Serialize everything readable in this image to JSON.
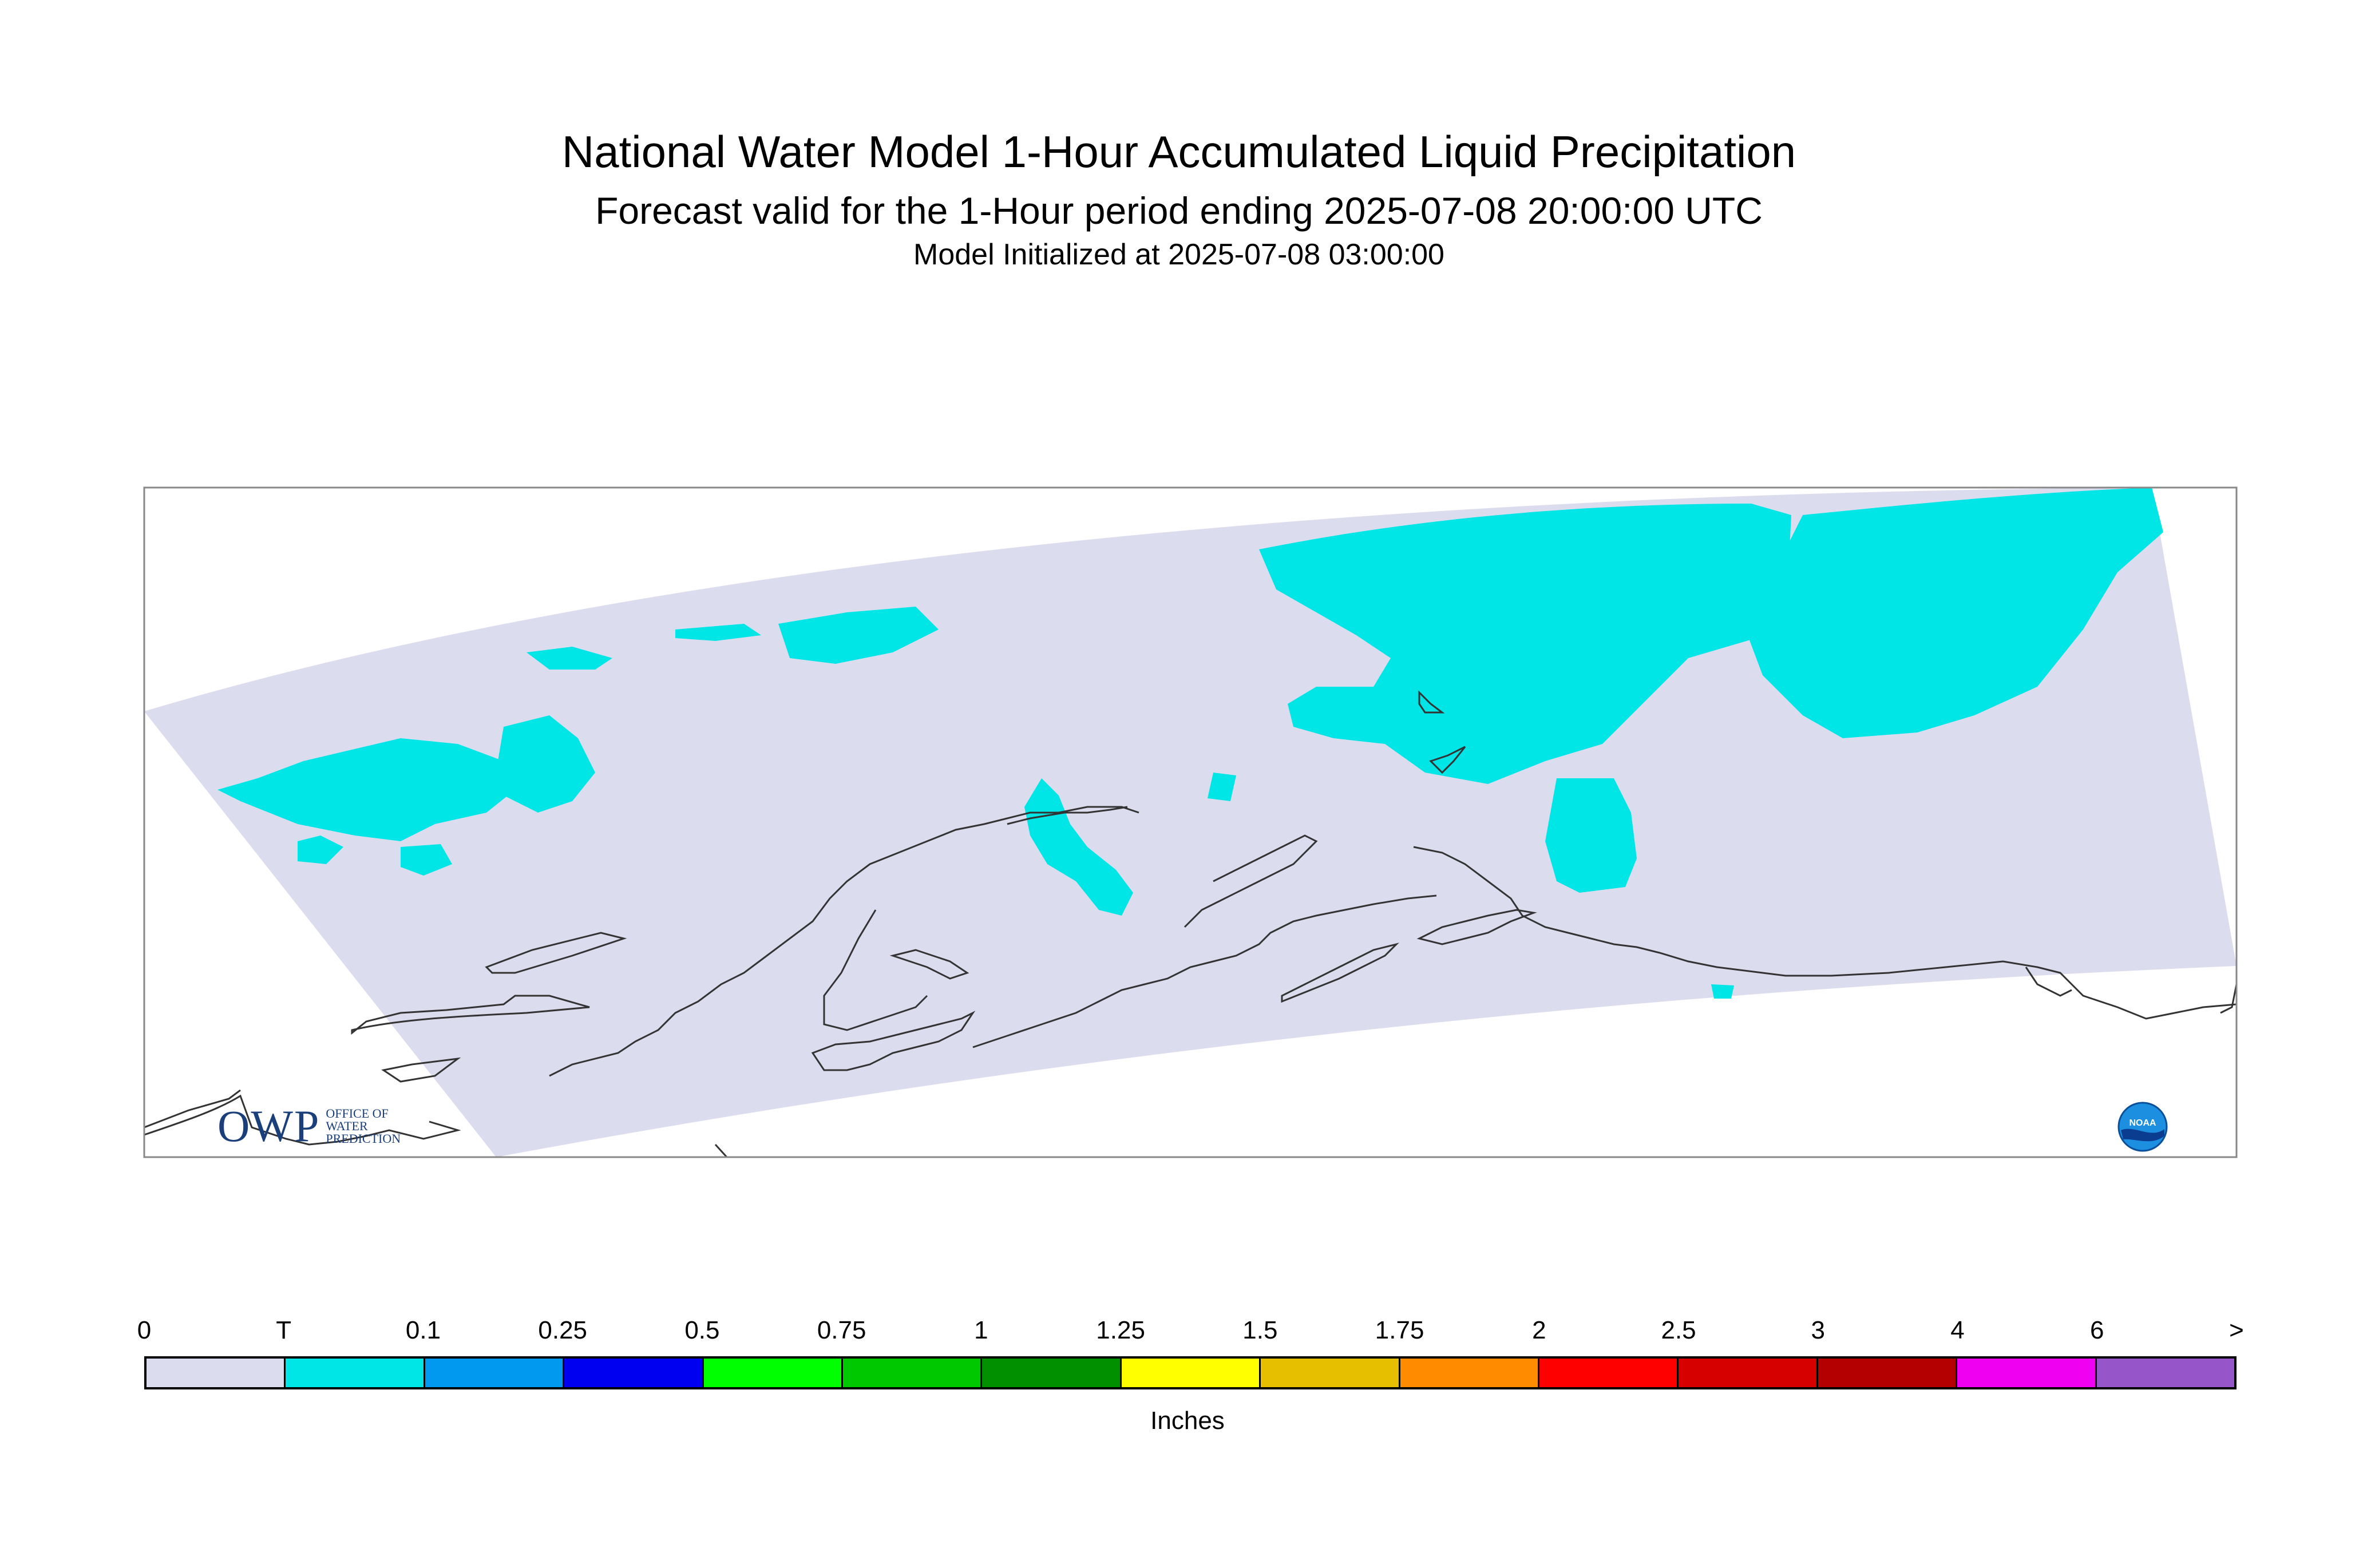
{
  "title": {
    "line1": "National Water Model 1-Hour Accumulated Liquid Precipitation",
    "line2": "Forecast valid for the 1-Hour period ending 2025-07-08 20:00:00 UTC",
    "line3": "Model Initialized at 2025-07-08 03:00:00"
  },
  "map": {
    "domain_fill_color": "#dcdcef",
    "precip_color": "#00e5e5",
    "coastline_color": "#333333"
  },
  "logos": {
    "owp_mark": "OWP",
    "owp_text": [
      "OFFICE OF",
      "WATER",
      "PREDICTION"
    ],
    "noaa_text": "NOAA"
  },
  "legend": {
    "labels": [
      "0",
      "T",
      "0.1",
      "0.25",
      "0.5",
      "0.75",
      "1",
      "1.25",
      "1.5",
      "1.75",
      "2",
      "2.5",
      "3",
      "4",
      "6",
      ">"
    ],
    "colors": [
      "#dcdcef",
      "#00e5e5",
      "#0099f0",
      "#0000f0",
      "#00ff00",
      "#00c800",
      "#009000",
      "#ffff00",
      "#e6c000",
      "#ff8c00",
      "#ff0000",
      "#d60000",
      "#b40000",
      "#f000f0",
      "#9655c8"
    ],
    "units": "Inches"
  }
}
